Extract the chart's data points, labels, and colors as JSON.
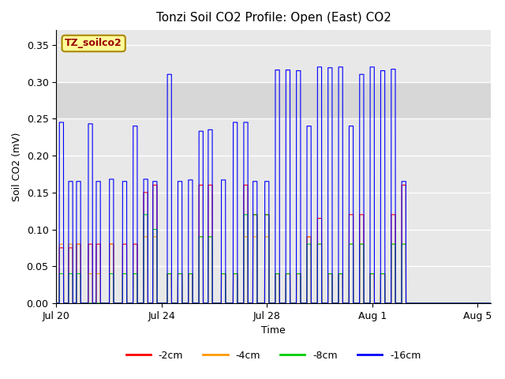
{
  "title": "Tonzi Soil CO2 Profile: Open (East) CO2",
  "xlabel": "Time",
  "ylabel": "Soil CO2 (mV)",
  "ylim": [
    0,
    0.37
  ],
  "yticks": [
    0.0,
    0.05,
    0.1,
    0.15,
    0.2,
    0.25,
    0.3,
    0.35
  ],
  "colors": {
    "-2cm": "#ff0000",
    "-4cm": "#ff9900",
    "-8cm": "#00cc00",
    "-16cm": "#0000ff"
  },
  "legend_label": "TZ_soilco2",
  "legend_text_color": "#990000",
  "legend_box_color": "#ffff99",
  "shaded_region": [
    0.25,
    0.3
  ],
  "x_tick_labels": [
    "Jul 20",
    "Jul 24",
    "Jul 28",
    "Aug 1",
    "Aug 5"
  ],
  "background_color": "#ffffff",
  "plot_bg_color": "#e8e8e8",
  "grid_color": "#ffffff",
  "spike_groups": [
    {
      "t": 0.2,
      "r": 0.075,
      "o": 0.08,
      "g": 0.04,
      "b": 0.245
    },
    {
      "t": 0.55,
      "r": 0.075,
      "o": 0.08,
      "g": 0.04,
      "b": 0.165
    },
    {
      "t": 0.85,
      "r": 0.08,
      "o": 0.08,
      "g": 0.04,
      "b": 0.165
    },
    {
      "t": 1.3,
      "r": 0.08,
      "o": 0.04,
      "g": 0.0,
      "b": 0.243
    },
    {
      "t": 1.6,
      "r": 0.08,
      "o": 0.04,
      "g": 0.0,
      "b": 0.165
    },
    {
      "t": 2.1,
      "r": 0.08,
      "o": 0.08,
      "g": 0.04,
      "b": 0.168
    },
    {
      "t": 2.6,
      "r": 0.08,
      "o": 0.04,
      "g": 0.04,
      "b": 0.165
    },
    {
      "t": 3.0,
      "r": 0.08,
      "o": 0.04,
      "g": 0.04,
      "b": 0.24
    },
    {
      "t": 3.4,
      "r": 0.15,
      "o": 0.09,
      "g": 0.12,
      "b": 0.168
    },
    {
      "t": 3.75,
      "r": 0.16,
      "o": 0.09,
      "g": 0.1,
      "b": 0.165
    },
    {
      "t": 4.3,
      "r": 0.04,
      "o": 0.04,
      "g": 0.04,
      "b": 0.31
    },
    {
      "t": 4.7,
      "r": 0.04,
      "o": 0.04,
      "g": 0.04,
      "b": 0.165
    },
    {
      "t": 5.1,
      "r": 0.04,
      "o": 0.04,
      "g": 0.04,
      "b": 0.167
    },
    {
      "t": 5.5,
      "r": 0.16,
      "o": 0.09,
      "g": 0.09,
      "b": 0.233
    },
    {
      "t": 5.85,
      "r": 0.16,
      "o": 0.09,
      "g": 0.09,
      "b": 0.235
    },
    {
      "t": 6.35,
      "r": 0.04,
      "o": 0.04,
      "g": 0.04,
      "b": 0.167
    },
    {
      "t": 6.8,
      "r": 0.04,
      "o": 0.04,
      "g": 0.04,
      "b": 0.245
    },
    {
      "t": 7.2,
      "r": 0.16,
      "o": 0.09,
      "g": 0.12,
      "b": 0.245
    },
    {
      "t": 7.55,
      "r": 0.12,
      "o": 0.09,
      "g": 0.12,
      "b": 0.165
    },
    {
      "t": 8.0,
      "r": 0.12,
      "o": 0.09,
      "g": 0.12,
      "b": 0.165
    },
    {
      "t": 8.4,
      "r": 0.04,
      "o": 0.04,
      "g": 0.04,
      "b": 0.316
    },
    {
      "t": 8.8,
      "r": 0.04,
      "o": 0.04,
      "g": 0.04,
      "b": 0.316
    },
    {
      "t": 9.2,
      "r": 0.04,
      "o": 0.04,
      "g": 0.04,
      "b": 0.315
    },
    {
      "t": 9.6,
      "r": 0.09,
      "o": 0.09,
      "g": 0.08,
      "b": 0.24
    },
    {
      "t": 10.0,
      "r": 0.115,
      "o": 0.08,
      "g": 0.08,
      "b": 0.32
    },
    {
      "t": 10.4,
      "r": 0.04,
      "o": 0.04,
      "g": 0.04,
      "b": 0.319
    },
    {
      "t": 10.8,
      "r": 0.04,
      "o": 0.04,
      "g": 0.04,
      "b": 0.32
    },
    {
      "t": 11.2,
      "r": 0.12,
      "o": 0.08,
      "g": 0.08,
      "b": 0.24
    },
    {
      "t": 11.6,
      "r": 0.12,
      "o": 0.08,
      "g": 0.08,
      "b": 0.31
    },
    {
      "t": 12.0,
      "r": 0.04,
      "o": 0.04,
      "g": 0.04,
      "b": 0.32
    },
    {
      "t": 12.4,
      "r": 0.04,
      "o": 0.04,
      "g": 0.04,
      "b": 0.315
    },
    {
      "t": 12.8,
      "r": 0.12,
      "o": 0.08,
      "g": 0.08,
      "b": 0.317
    },
    {
      "t": 13.2,
      "r": 0.16,
      "o": 0.08,
      "g": 0.08,
      "b": 0.165
    }
  ]
}
